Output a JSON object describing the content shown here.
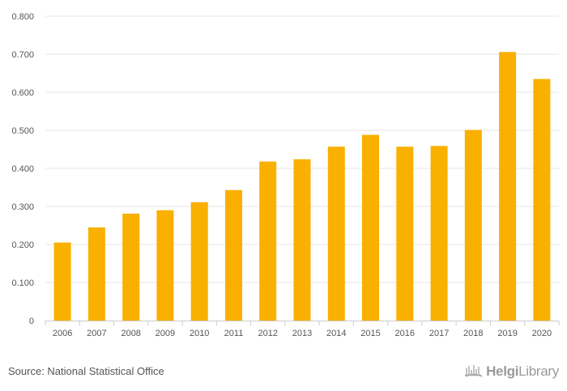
{
  "chart_data": {
    "type": "bar",
    "categories": [
      "2006",
      "2007",
      "2008",
      "2009",
      "2010",
      "2011",
      "2012",
      "2013",
      "2014",
      "2015",
      "2016",
      "2017",
      "2018",
      "2019",
      "2020"
    ],
    "values": [
      0.205,
      0.245,
      0.281,
      0.29,
      0.311,
      0.343,
      0.418,
      0.424,
      0.457,
      0.488,
      0.457,
      0.459,
      0.501,
      0.706,
      0.635
    ],
    "title": "",
    "xlabel": "",
    "ylabel": "",
    "ylim": [
      0,
      0.8
    ],
    "yticks": [
      0,
      0.1,
      0.2,
      0.3,
      0.4,
      0.5,
      0.6,
      0.7,
      0.8
    ],
    "ytick_labels": [
      "0",
      "0.100",
      "0.200",
      "0.300",
      "0.400",
      "0.500",
      "0.600",
      "0.700",
      "0.800"
    ],
    "grid": true,
    "bar_color": "#f9b000",
    "grid_color": "#e6e6e6",
    "axis_color": "#cccccc"
  },
  "footer": {
    "source": "Source: National Statistical Office",
    "brand_bold": "Helgi",
    "brand_regular": "Library",
    "brand_icon": "helgi-library-logo-icon"
  }
}
